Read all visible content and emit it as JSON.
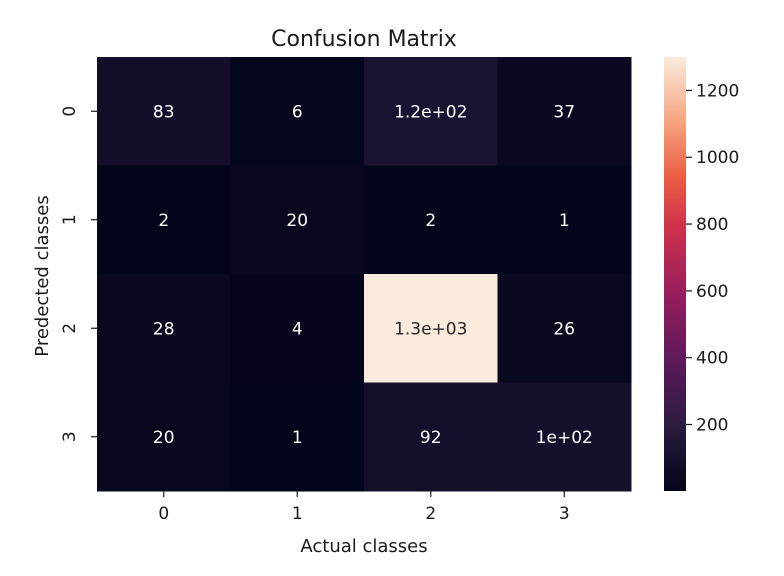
{
  "chart_data": {
    "type": "heatmap",
    "title": "Confusion Matrix",
    "xlabel": "Actual classes",
    "ylabel": "Predected classes",
    "x_categories": [
      "0",
      "1",
      "2",
      "3"
    ],
    "y_categories": [
      "0",
      "1",
      "2",
      "3"
    ],
    "values": [
      [
        83,
        6,
        120,
        37
      ],
      [
        2,
        20,
        2,
        1
      ],
      [
        28,
        4,
        1300,
        26
      ],
      [
        20,
        1,
        92,
        100
      ]
    ],
    "annotations": [
      [
        "83",
        "6",
        "1.2e+02",
        "37"
      ],
      [
        "2",
        "20",
        "2",
        "1"
      ],
      [
        "28",
        "4",
        "1.3e+03",
        "26"
      ],
      [
        "20",
        "1",
        "92",
        "1e+02"
      ]
    ],
    "colorbar": {
      "colormap": "rocket",
      "vmin": 1,
      "vmax": 1300,
      "ticks": [
        200,
        400,
        600,
        800,
        1000,
        1200
      ],
      "tick_labels": [
        "200",
        "400",
        "600",
        "800",
        "1000",
        "1200"
      ]
    },
    "grid": false
  }
}
